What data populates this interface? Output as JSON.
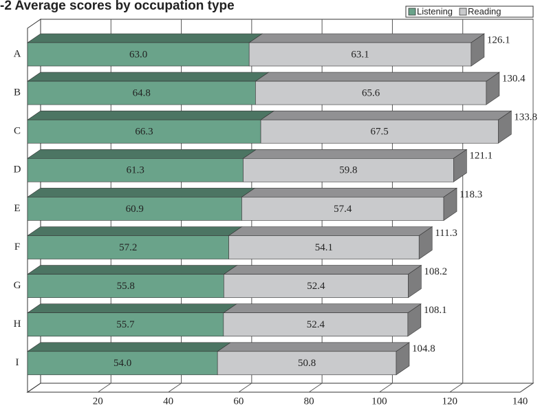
{
  "chart_data": {
    "type": "bar3d_stacked_horizontal",
    "title": "-2 Average scores by occupation type",
    "categories": [
      "A",
      "B",
      "C",
      "D",
      "E",
      "F",
      "G",
      "H",
      "I"
    ],
    "series": [
      {
        "name": "Listening",
        "color": "#6aa38a",
        "values": [
          63.0,
          64.8,
          66.3,
          61.3,
          60.9,
          57.2,
          55.8,
          55.7,
          54.0
        ],
        "value_labels": [
          "63.0",
          "64.8",
          "66.3",
          "61.3",
          "60.9",
          "57.2",
          "55.8",
          "55.7",
          "54.0"
        ]
      },
      {
        "name": "Reading",
        "color": "#c9cacc",
        "values": [
          63.1,
          65.6,
          67.5,
          59.8,
          57.4,
          54.1,
          52.4,
          52.4,
          50.8
        ]
      }
    ],
    "totals": [
      126.1,
      130.4,
      133.8,
      121.1,
      118.3,
      111.3,
      108.2,
      108.1,
      104.8
    ],
    "xlim": [
      0,
      140
    ],
    "xticks": [
      20,
      40,
      60,
      80,
      100,
      120,
      140
    ],
    "grid": true,
    "legend": "top-right"
  }
}
